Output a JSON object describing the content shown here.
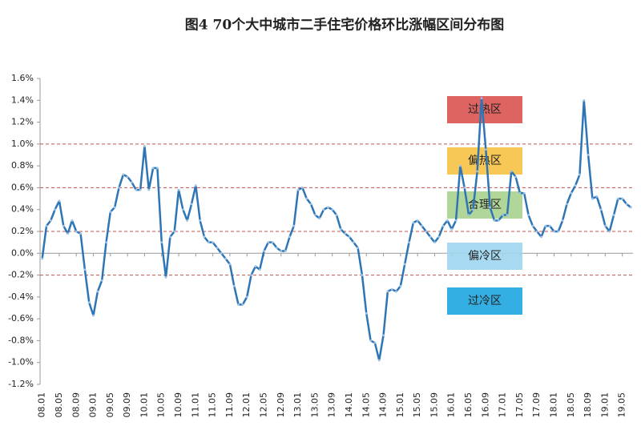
{
  "chart_data": {
    "type": "line",
    "title": "图4   70个大中城市二手住宅价格环比涨幅区间分布图",
    "categories": [
      "08.01",
      null,
      null,
      null,
      "08.05",
      null,
      null,
      null,
      "08.09",
      null,
      null,
      null,
      "09.01",
      null,
      null,
      null,
      "09.05",
      null,
      null,
      null,
      "09.09",
      null,
      null,
      null,
      "10.01",
      null,
      null,
      null,
      "10.05",
      null,
      null,
      null,
      "10.09",
      null,
      null,
      null,
      "11.01",
      null,
      null,
      null,
      "11.05",
      null,
      null,
      null,
      "11.09",
      null,
      null,
      null,
      "12.01",
      null,
      null,
      null,
      "12.05",
      null,
      null,
      null,
      "12.09",
      null,
      null,
      null,
      "13.01",
      null,
      null,
      null,
      "13.05",
      null,
      null,
      null,
      "13.09",
      null,
      null,
      null,
      "14.01",
      null,
      null,
      null,
      "14.05",
      null,
      null,
      null,
      "14.09",
      null,
      null,
      null,
      "15.01",
      null,
      null,
      null,
      "15.05",
      null,
      null,
      null,
      "15.09",
      null,
      null,
      null,
      "16.01",
      null,
      null,
      null,
      "16.05",
      null,
      null,
      null,
      "16.09",
      null,
      null,
      null,
      "17.01",
      null,
      null,
      null,
      "17.05",
      null,
      null,
      null,
      "17.09",
      null,
      null,
      null,
      "18.01",
      null,
      null,
      null,
      "18.05",
      null,
      null,
      null,
      "18.09",
      null,
      null,
      null,
      "19.01",
      null,
      null,
      null,
      "19.05",
      null,
      null
    ],
    "values": [
      -0.05,
      0.25,
      0.3,
      0.4,
      0.48,
      0.25,
      0.18,
      0.3,
      0.2,
      0.18,
      -0.15,
      -0.45,
      -0.57,
      -0.35,
      -0.25,
      0.1,
      0.38,
      0.42,
      0.6,
      0.72,
      0.7,
      0.65,
      0.58,
      0.58,
      0.98,
      0.58,
      0.78,
      0.78,
      0.1,
      -0.22,
      0.15,
      0.2,
      0.58,
      0.4,
      0.3,
      0.45,
      0.62,
      0.3,
      0.15,
      0.1,
      0.1,
      0.05,
      0.0,
      -0.05,
      -0.1,
      -0.3,
      -0.47,
      -0.47,
      -0.4,
      -0.2,
      -0.12,
      -0.15,
      0.02,
      0.1,
      0.1,
      0.05,
      0.02,
      0.02,
      0.15,
      0.25,
      0.58,
      0.6,
      0.5,
      0.45,
      0.35,
      0.32,
      0.4,
      0.42,
      0.4,
      0.35,
      0.22,
      0.18,
      0.15,
      0.1,
      0.05,
      -0.2,
      -0.55,
      -0.8,
      -0.82,
      -0.98,
      -0.75,
      -0.35,
      -0.33,
      -0.35,
      -0.3,
      -0.1,
      0.1,
      0.28,
      0.3,
      0.25,
      0.2,
      0.15,
      0.1,
      0.15,
      0.25,
      0.3,
      0.22,
      0.3,
      0.8,
      0.6,
      0.35,
      0.4,
      0.75,
      1.42,
      0.95,
      0.42,
      0.3,
      0.3,
      0.35,
      0.35,
      0.75,
      0.7,
      0.55,
      0.55,
      0.35,
      0.25,
      0.2,
      0.15,
      0.25,
      0.25,
      0.2,
      0.2,
      0.3,
      0.45,
      0.55,
      0.62,
      0.72,
      1.4,
      0.9,
      0.5,
      0.52,
      0.4,
      0.25,
      0.2,
      0.35,
      0.5,
      0.5,
      0.45,
      0.42
    ],
    "color": "#2e75b6",
    "ylim": [
      -1.2,
      1.6
    ],
    "yticks": [
      {
        "value": -1.2,
        "label": "-1.2%"
      },
      {
        "value": -1.0,
        "label": "-1.0%"
      },
      {
        "value": -0.8,
        "label": "-0.8%"
      },
      {
        "value": -0.6,
        "label": "-0.6%"
      },
      {
        "value": -0.4,
        "label": "-0.4%"
      },
      {
        "value": -0.2,
        "label": "-0.2%"
      },
      {
        "value": 0,
        "label": "0.0%"
      },
      {
        "value": 0.2,
        "label": "0.2%"
      },
      {
        "value": 0.4,
        "label": "0.4%"
      },
      {
        "value": 0.6,
        "label": "0.6%"
      },
      {
        "value": 0.8,
        "label": "0.8%"
      },
      {
        "value": 1.0,
        "label": "1.0%"
      },
      {
        "value": 1.2,
        "label": "1.2%"
      },
      {
        "value": 1.4,
        "label": "1.4%"
      },
      {
        "value": 1.6,
        "label": "1.6%"
      }
    ],
    "reference_lines": [
      1.0,
      0.6,
      0.2,
      -0.2
    ],
    "reference_color": "#c0504d",
    "zones": [
      {
        "label": "过热区",
        "color": "#d9534f"
      },
      {
        "label": "偏热区",
        "color": "#f7c244"
      },
      {
        "label": "合理区",
        "color": "#a9d18e"
      },
      {
        "label": "偏冷区",
        "color": "#9dd5ee"
      },
      {
        "label": "过冷区",
        "color": "#1ea6e0"
      }
    ]
  }
}
